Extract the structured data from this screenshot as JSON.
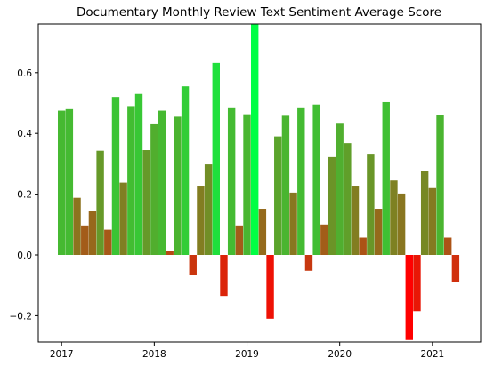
{
  "chart_data": {
    "type": "bar",
    "title": "Documentary Monthly Review Text Sentiment Average Score",
    "xlabel": "",
    "ylabel": "",
    "x_start": "2017-01",
    "months": [
      "2017-01",
      "2017-02",
      "2017-03",
      "2017-04",
      "2017-05",
      "2017-06",
      "2017-07",
      "2017-08",
      "2017-09",
      "2017-10",
      "2017-11",
      "2017-12",
      "2018-01",
      "2018-02",
      "2018-03",
      "2018-04",
      "2018-05",
      "2018-06",
      "2018-07",
      "2018-08",
      "2018-09",
      "2018-10",
      "2018-11",
      "2018-12",
      "2019-01",
      "2019-02",
      "2019-03",
      "2019-04",
      "2019-05",
      "2019-06",
      "2019-07",
      "2019-08",
      "2019-09",
      "2019-10",
      "2019-11",
      "2019-12",
      "2020-01",
      "2020-02",
      "2020-03",
      "2020-04",
      "2020-05",
      "2020-06",
      "2020-07",
      "2020-08",
      "2020-09",
      "2020-10",
      "2020-11",
      "2020-12",
      "2021-01",
      "2021-02",
      "2021-03",
      "2021-04"
    ],
    "values": [
      0.475,
      0.48,
      0.188,
      0.097,
      0.146,
      0.343,
      0.083,
      0.52,
      0.238,
      0.49,
      0.53,
      0.345,
      0.43,
      0.475,
      0.012,
      0.455,
      0.555,
      -0.065,
      0.228,
      0.298,
      0.632,
      -0.135,
      0.483,
      0.097,
      0.463,
      0.76,
      0.152,
      -0.21,
      0.39,
      0.458,
      0.205,
      0.483,
      -0.052,
      0.495,
      0.1,
      0.322,
      0.432,
      0.368,
      0.228,
      0.057,
      0.333,
      0.152,
      0.503,
      0.245,
      0.202,
      -0.28,
      -0.185,
      0.275,
      0.22,
      0.46,
      0.057,
      -0.088
    ],
    "x_ticks": [
      "2017",
      "2018",
      "2019",
      "2020",
      "2021"
    ],
    "y_ticks": [
      "−0.2",
      "0.0",
      "0.2",
      "0.4",
      "0.6"
    ],
    "y_tick_values": [
      -0.2,
      0.0,
      0.2,
      0.4,
      0.6
    ],
    "ylim": [
      -0.29,
      0.76
    ],
    "grid": false,
    "color_scale": {
      "low_value": -0.28,
      "high_value": 0.76,
      "low_color": "#ff0000",
      "high_color": "#00ff44"
    }
  }
}
